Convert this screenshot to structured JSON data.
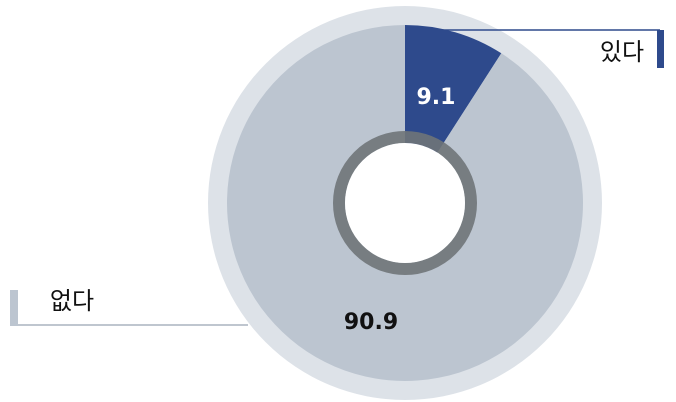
{
  "chart_data": {
    "type": "pie",
    "categories": [
      "있다",
      "없다"
    ],
    "values": [
      9.1,
      90.9
    ],
    "colors": [
      "#2e4a8c",
      "#bcc5d0"
    ]
  }
}
